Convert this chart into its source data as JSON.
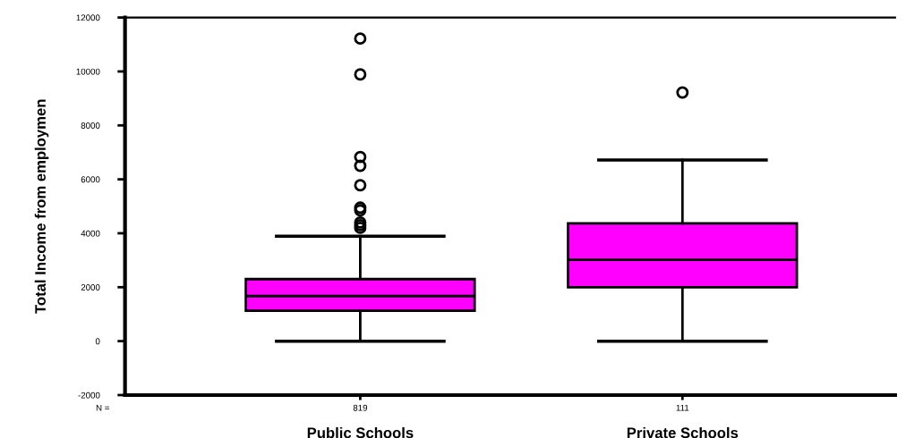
{
  "chart_data": {
    "type": "box",
    "ylabel": "Total Income from employmen",
    "categories": [
      "Public Schools",
      "Private Schools"
    ],
    "boxes": [
      {
        "low": 0,
        "q1": 1130,
        "median": 1670,
        "q3": 2300,
        "high": 3890,
        "outliers": [
          4200,
          4300,
          4400,
          4850,
          4950,
          5780,
          6500,
          6830,
          9890,
          11220
        ]
      },
      {
        "low": 0,
        "q1": 2000,
        "median": 3020,
        "q3": 4370,
        "high": 6720,
        "outliers": [
          9220
        ]
      }
    ],
    "color": "#ff00ff",
    "ylim": [
      -2000,
      12000
    ],
    "yticks": [
      -2000,
      0,
      2000,
      4000,
      6000,
      8000,
      10000,
      12000
    ],
    "grid": false,
    "annotations": [
      "N =",
      "819",
      "111"
    ]
  }
}
